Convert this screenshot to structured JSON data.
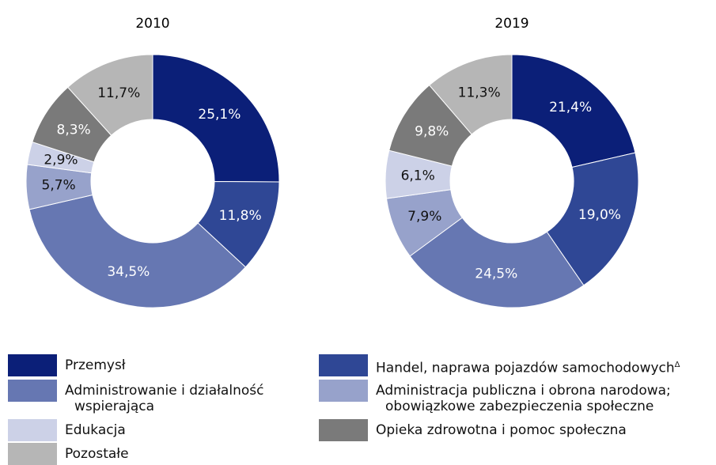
{
  "chart_data": [
    {
      "type": "pie",
      "title": "2010",
      "categories": [
        "Przemysł",
        "Handel, naprawa pojazdów samochodowych",
        "Administrowanie i działalność wspierająca",
        "Administracja publiczna i obrona narodowa; obowiązkowe zabezpieczenia społeczne",
        "Edukacja",
        "Opieka zdrowotna i pomoc społeczna",
        "Pozostałe"
      ],
      "category_notes": [
        null,
        "Δ",
        null,
        null,
        null,
        null,
        null
      ],
      "values": [
        25.1,
        11.8,
        34.5,
        5.7,
        2.9,
        8.3,
        11.7
      ],
      "value_labels": [
        "25,1%",
        "11,8%",
        "34,5%",
        "5,7%",
        "2,9%",
        "8,3%",
        "11,7%"
      ],
      "colors": [
        "#0b1f78",
        "#2f4795",
        "#6677b2",
        "#97a2cb",
        "#ccd1e7",
        "#7a7a7a",
        "#b6b6b6"
      ]
    },
    {
      "type": "pie",
      "title": "2019",
      "categories": [
        "Przemysł",
        "Handel, naprawa pojazdów samochodowych",
        "Administrowanie i działalność wspierająca",
        "Administracja publiczna i obrona narodowa; obowiązkowe zabezpieczenia społeczne",
        "Edukacja",
        "Opieka zdrowotna i pomoc społeczna",
        "Pozostałe"
      ],
      "category_notes": [
        null,
        "Δ",
        null,
        null,
        null,
        null,
        null
      ],
      "values": [
        21.4,
        19.0,
        24.5,
        7.9,
        6.1,
        9.8,
        11.3
      ],
      "value_labels": [
        "21,4%",
        "19,0%",
        "24,5%",
        "7,9%",
        "6,1%",
        "9,8%",
        "11,3%"
      ],
      "colors": [
        "#0b1f78",
        "#2f4795",
        "#6677b2",
        "#97a2cb",
        "#ccd1e7",
        "#7a7a7a",
        "#b6b6b6"
      ]
    }
  ]
}
